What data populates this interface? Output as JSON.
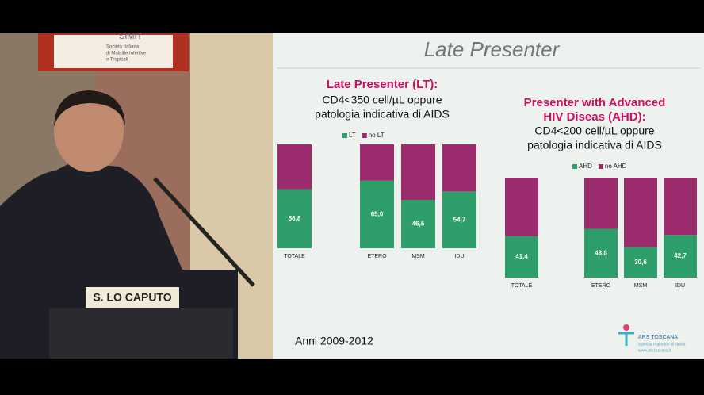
{
  "slide_title": "Late Presenter",
  "years_note": "Anni 2009-2012",
  "speaker_name": "S. LO CAPUTO",
  "banner": {
    "title": "SIMIT",
    "subtitle": [
      "Società Italiana",
      "di Malattie Infettive",
      "e Tropicali"
    ]
  },
  "logo": {
    "name": "ARS TOSCANA",
    "subtitle": "agenzia regionale di sanità",
    "url": "www.ars.toscana.it"
  },
  "chart_data": [
    {
      "type": "bar",
      "stacked": true,
      "title": "Late Presenter (LT):",
      "subtitle": [
        "CD4<350 cell/µL oppure",
        "patologia indicativa di AIDS"
      ],
      "categories": [
        "TOTALE",
        null,
        "ETERO",
        "MSM",
        "IDU"
      ],
      "series": [
        {
          "name": "LT",
          "color": "#2e9e6b",
          "values": [
            56.8,
            null,
            65.0,
            46.5,
            54.7
          ],
          "value_labels": [
            "56,8",
            null,
            "65,0",
            "46,5",
            "54,7"
          ]
        },
        {
          "name": "no LT",
          "color": "#9b2b6c",
          "values": [
            43.2,
            null,
            35.0,
            53.5,
            45.3
          ]
        }
      ]
    },
    {
      "type": "bar",
      "stacked": true,
      "title": [
        "Presenter with Advanced",
        "HIV Diseas (AHD):"
      ],
      "subtitle": [
        "CD4<200 cell/µL oppure",
        "patologia indicativa di AIDS"
      ],
      "categories": [
        "TOTALE",
        null,
        "ETERO",
        "MSM",
        "IDU"
      ],
      "series": [
        {
          "name": "AHD",
          "color": "#2e9e6b",
          "values": [
            41.4,
            null,
            48.8,
            30.6,
            42.7
          ],
          "value_labels": [
            "41,4",
            null,
            "48,8",
            "30,6",
            "42,7"
          ]
        },
        {
          "name": "no AHD",
          "color": "#9b2b6c",
          "values": [
            58.6,
            null,
            51.2,
            69.4,
            57.3
          ]
        }
      ]
    }
  ]
}
